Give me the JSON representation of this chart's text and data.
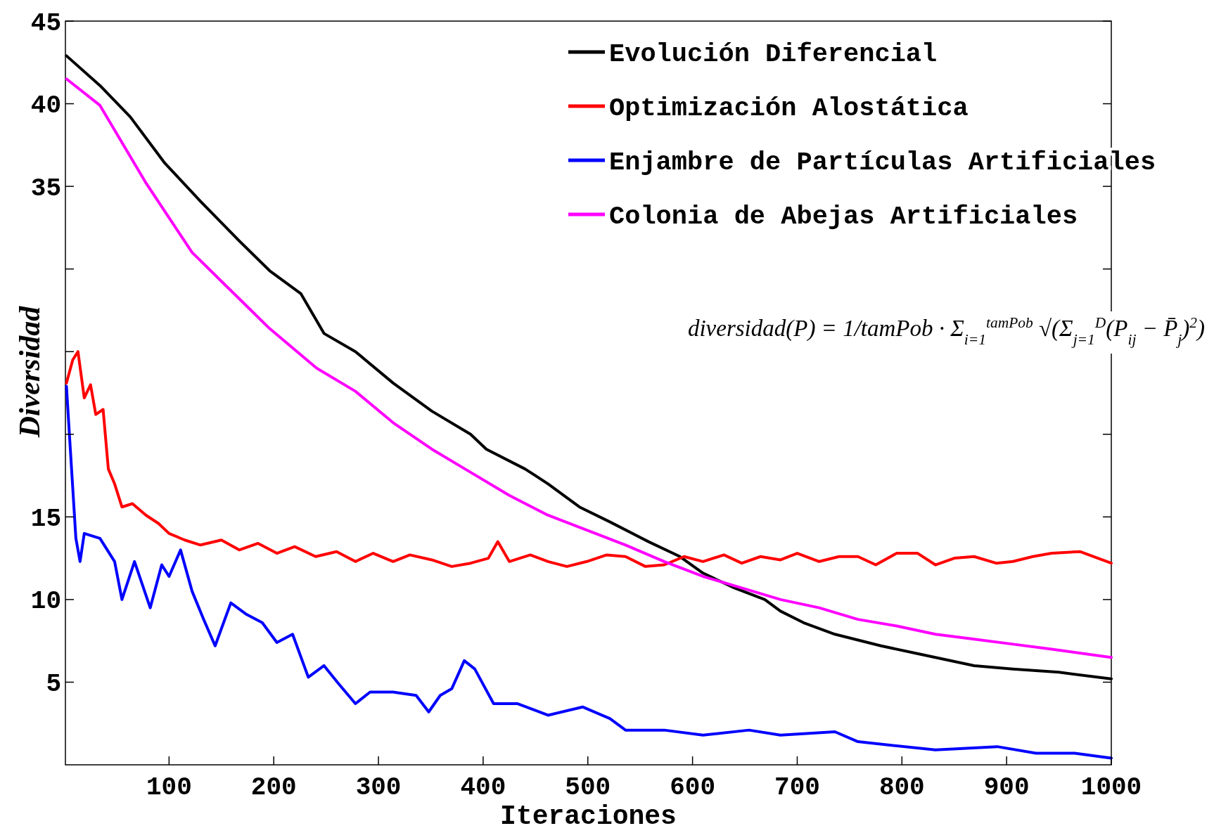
{
  "chart_data": {
    "type": "line",
    "xlabel": "Iteraciones",
    "ylabel": "Diversidad",
    "xlim": [
      1,
      1000
    ],
    "ylim": [
      0,
      45
    ],
    "xticks": [
      100,
      200,
      300,
      400,
      500,
      600,
      700,
      800,
      900,
      1000
    ],
    "yticks": [
      5,
      10,
      15,
      {
        "value": 20,
        "label": null
      },
      {
        "value": 25,
        "label": null
      },
      {
        "value": 30,
        "label": null
      },
      35,
      40,
      45
    ],
    "grid": false,
    "legend": "top right",
    "line_style": "solid",
    "annotations": [
      "diversidad(P) = 1/tamPob · Σ$_{i=1}$$^{tamPob}$ √(Σ$_{j=1}$$^{D}$(P$_{ij}$ − P̄$_{j}$)$^{2}$)"
    ],
    "series": [
      {
        "name": "Evolución Diferencial",
        "color": "#000000",
        "x": [
          2,
          34,
          63,
          96,
          130,
          167,
          196,
          226,
          248,
          278,
          314,
          351,
          388,
          403,
          440,
          462,
          492,
          521,
          558,
          588,
          610,
          640,
          669,
          684,
          706,
          736,
          780,
          817,
          869,
          906,
          950,
          1000
        ],
        "values": [
          42.9,
          41.1,
          39.2,
          36.4,
          34.1,
          31.7,
          29.9,
          28.5,
          26.1,
          25.0,
          23.1,
          21.4,
          20.0,
          19.1,
          17.9,
          17.0,
          15.6,
          14.7,
          13.5,
          12.6,
          11.6,
          10.7,
          10.0,
          9.3,
          8.6,
          7.9,
          7.2,
          6.7,
          6.0,
          5.8,
          5.6,
          5.2
        ]
      },
      {
        "name": "Optimización Alostática",
        "color": "#ff0000",
        "x": [
          2,
          8,
          13,
          19,
          25,
          30,
          37,
          42,
          48,
          55,
          65,
          78,
          90,
          100,
          115,
          130,
          150,
          167,
          185,
          203,
          220,
          240,
          260,
          278,
          295,
          314,
          330,
          351,
          370,
          388,
          405,
          414,
          425,
          445,
          462,
          480,
          499,
          518,
          536,
          555,
          573,
          592,
          610,
          630,
          647,
          665,
          684,
          700,
          721,
          740,
          758,
          775,
          795,
          815,
          832,
          850,
          869,
          890,
          906,
          925,
          943,
          970,
          1000
        ],
        "values": [
          23.1,
          24.5,
          25.0,
          22.2,
          23.0,
          21.2,
          21.5,
          17.9,
          17.0,
          15.6,
          15.8,
          15.1,
          14.6,
          14.0,
          13.6,
          13.3,
          13.6,
          13.0,
          13.4,
          12.8,
          13.2,
          12.6,
          12.9,
          12.3,
          12.8,
          12.3,
          12.7,
          12.4,
          12.0,
          12.2,
          12.5,
          13.5,
          12.3,
          12.7,
          12.3,
          12.0,
          12.3,
          12.7,
          12.6,
          12.0,
          12.1,
          12.6,
          12.3,
          12.7,
          12.2,
          12.6,
          12.4,
          12.8,
          12.3,
          12.6,
          12.6,
          12.1,
          12.8,
          12.8,
          12.1,
          12.5,
          12.6,
          12.2,
          12.3,
          12.6,
          12.8,
          12.9,
          12.2
        ]
      },
      {
        "name": "Enjambre de Partículas Artificiales",
        "color": "#0000ff",
        "x": [
          2,
          5,
          11,
          15,
          19,
          34,
          48,
          55,
          67,
          82,
          93,
          100,
          111,
          122,
          133,
          144,
          159,
          174,
          189,
          203,
          218,
          233,
          248,
          262,
          278,
          292,
          314,
          336,
          348,
          359,
          370,
          382,
          392,
          410,
          433,
          462,
          495,
          521,
          536,
          573,
          610,
          654,
          684,
          736,
          758,
          832,
          891,
          928,
          965,
          1000
        ],
        "values": [
          22.9,
          19.8,
          13.7,
          12.3,
          14.0,
          13.7,
          12.3,
          10.0,
          12.3,
          9.5,
          12.1,
          11.4,
          13.0,
          10.5,
          8.8,
          7.2,
          9.8,
          9.1,
          8.6,
          7.4,
          7.9,
          5.3,
          6.0,
          4.9,
          3.7,
          4.4,
          4.4,
          4.2,
          3.2,
          4.2,
          4.6,
          6.3,
          5.8,
          3.7,
          3.7,
          3.0,
          3.5,
          2.8,
          2.1,
          2.1,
          1.8,
          2.1,
          1.8,
          2.0,
          1.4,
          0.9,
          1.1,
          0.7,
          0.7,
          0.4
        ]
      },
      {
        "name": "Colonia de Abejas Artificiales",
        "color": "#ff00ff",
        "x": [
          2,
          34,
          78,
          122,
          159,
          196,
          241,
          278,
          314,
          351,
          388,
          425,
          462,
          499,
          536,
          573,
          610,
          647,
          684,
          721,
          758,
          795,
          832,
          869,
          906,
          943,
          1000
        ],
        "values": [
          41.5,
          39.9,
          35.2,
          31.0,
          28.7,
          26.4,
          24.0,
          22.6,
          20.7,
          19.1,
          17.7,
          16.3,
          15.1,
          14.2,
          13.3,
          12.3,
          11.4,
          10.7,
          10.0,
          9.5,
          8.8,
          8.4,
          7.9,
          7.6,
          7.3,
          7.0,
          6.5
        ]
      }
    ]
  }
}
